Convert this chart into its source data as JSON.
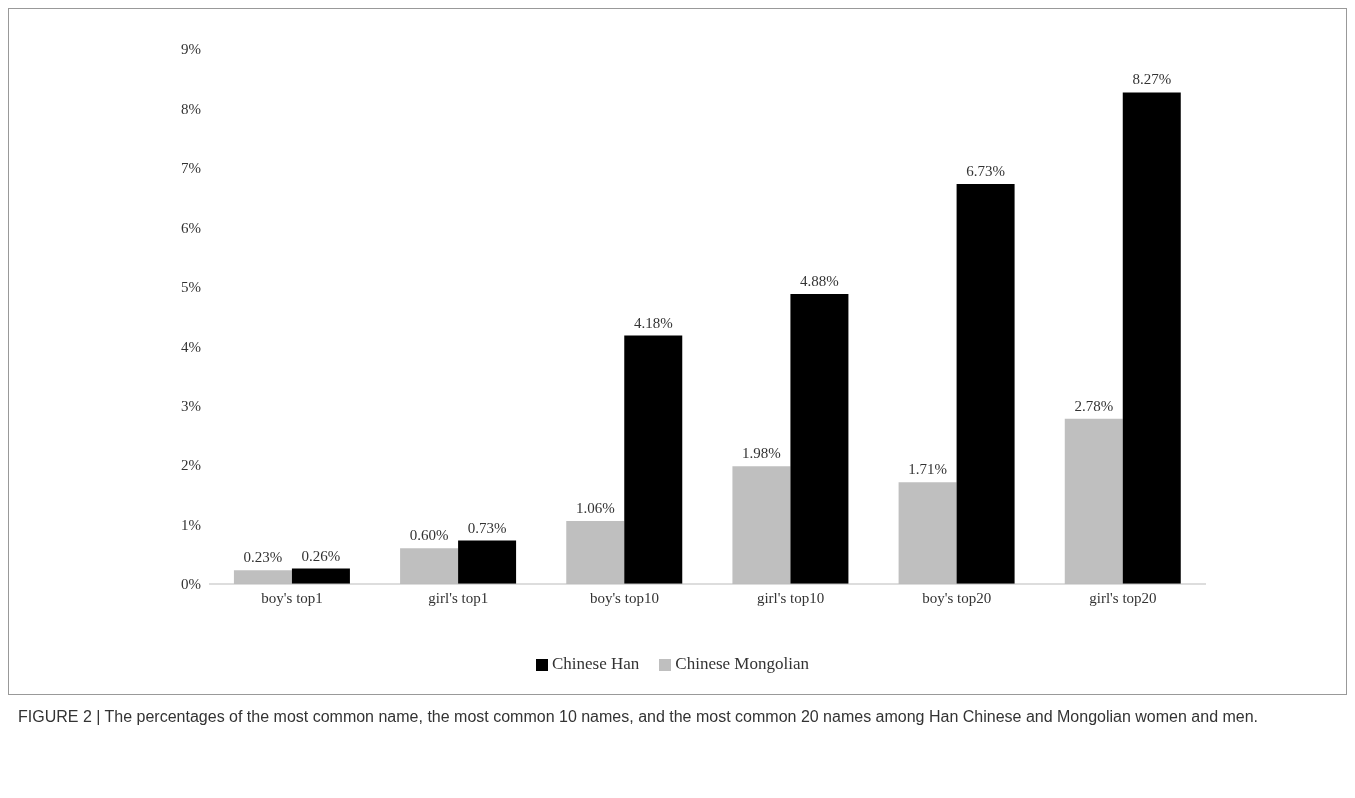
{
  "chart_data": {
    "type": "bar",
    "categories": [
      "boy's top1",
      "girl's top1",
      "boy's top10",
      "girl's top10",
      "boy's top20",
      "girl's top20"
    ],
    "series": [
      {
        "name": "Chinese Mongolian",
        "color": "#bfbfbf",
        "values": [
          0.23,
          0.6,
          1.06,
          1.98,
          1.71,
          2.78
        ],
        "value_labels": [
          "0.23%",
          "0.60%",
          "1.06%",
          "1.98%",
          "1.71%",
          "2.78%"
        ]
      },
      {
        "name": "Chinese Han",
        "color": "#000000",
        "values": [
          0.26,
          0.73,
          4.18,
          4.88,
          6.73,
          8.27
        ],
        "value_labels": [
          "0.26%",
          "0.73%",
          "4.18%",
          "4.88%",
          "6.73%",
          "8.27%"
        ]
      }
    ],
    "ylim": [
      0,
      9
    ],
    "yticks": [
      {
        "value": 0,
        "label": "0%"
      },
      {
        "value": 1,
        "label": "1%"
      },
      {
        "value": 2,
        "label": "2%"
      },
      {
        "value": 3,
        "label": "3%"
      },
      {
        "value": 4,
        "label": "4%"
      },
      {
        "value": 5,
        "label": "5%"
      },
      {
        "value": 6,
        "label": "6%"
      },
      {
        "value": 7,
        "label": "7%"
      },
      {
        "value": 8,
        "label": "8%"
      },
      {
        "value": 9,
        "label": "9%"
      }
    ],
    "grid": false,
    "legend": "bottom",
    "annotations": [
      "FIGURE 2 | The percentages of the most common name, the most common 10 names, and the most common 20 names among Han Chinese and Mongolian women and men."
    ]
  }
}
